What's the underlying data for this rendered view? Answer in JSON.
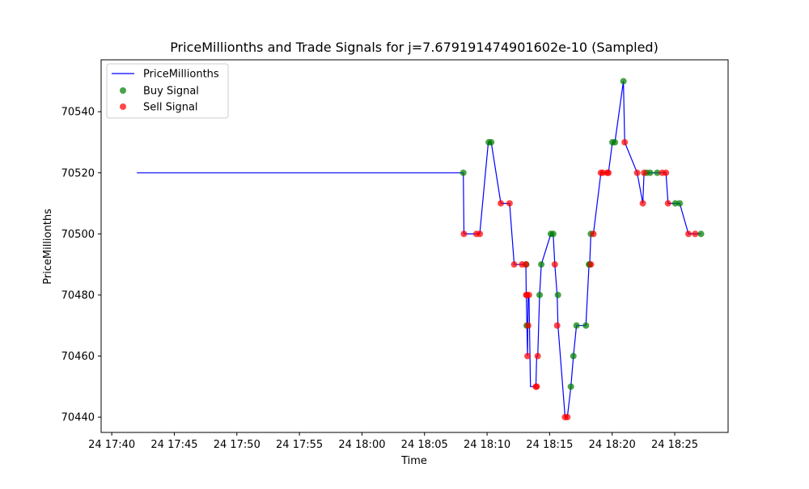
{
  "chart_data": {
    "type": "line",
    "title": "PriceMillionths and Trade Signals for j=7.679191474901602e-10 (Sampled)",
    "xlabel": "Time",
    "ylabel": "PriceMillionths",
    "xlim": [
      "24 17:39:09",
      "24 18:29:16"
    ],
    "ylim": [
      70435,
      70557
    ],
    "legend_position": "upper-left",
    "grid": false,
    "colors": {
      "price_line": "#0000ff",
      "buy": "#008000",
      "sell": "#ff0000"
    },
    "x_ticks": [
      "24 17:40",
      "24 17:45",
      "24 17:50",
      "24 17:55",
      "24 18:00",
      "24 18:05",
      "24 18:10",
      "24 18:15",
      "24 18:20",
      "24 18:25"
    ],
    "y_ticks": [
      70440,
      70460,
      70480,
      70500,
      70520,
      70540
    ],
    "series": [
      {
        "name": "PriceMillionths",
        "kind": "line",
        "x": [
          "24 17:42:00",
          "24 18:08:06",
          "24 18:08:09",
          "24 18:09:09",
          "24 18:09:25",
          "24 18:10:06",
          "24 18:10:20",
          "24 18:11:06",
          "24 18:11:48",
          "24 18:12:10",
          "24 18:12:48",
          "24 18:13:06",
          "24 18:13:08",
          "24 18:13:11",
          "24 18:13:14",
          "24 18:13:17",
          "24 18:13:21",
          "24 18:13:28",
          "24 18:13:54",
          "24 18:13:58",
          "24 18:14:03",
          "24 18:14:12",
          "24 18:14:20",
          "24 18:15:06",
          "24 18:15:17",
          "24 18:15:25",
          "24 18:15:36",
          "24 18:15:40",
          "24 18:16:14",
          "24 18:16:25",
          "24 18:16:42",
          "24 18:16:54",
          "24 18:17:09",
          "24 18:17:54",
          "24 18:18:09",
          "24 18:18:12",
          "24 18:18:18",
          "24 18:18:30",
          "24 18:19:06",
          "24 18:19:15",
          "24 18:19:36",
          "24 18:19:42",
          "24 18:20:01",
          "24 18:20:13",
          "24 18:20:54",
          "24 18:21:00",
          "24 18:22:00",
          "24 18:22:27",
          "24 18:22:33",
          "24 18:22:45",
          "24 18:23:02",
          "24 18:23:36",
          "24 18:24:00",
          "24 18:24:18",
          "24 18:24:28",
          "24 18:25:03",
          "24 18:25:24",
          "24 18:26:06",
          "24 18:26:38",
          "24 18:27:06"
        ],
        "values": [
          70520,
          70520,
          70500,
          70500,
          70500,
          70530,
          70530,
          70510,
          70510,
          70490,
          70490,
          70490,
          70480,
          70470,
          70460,
          70480,
          70480,
          70450,
          70450,
          70460,
          70460,
          70480,
          70490,
          70500,
          70500,
          70490,
          70480,
          70470,
          70440,
          70440,
          70450,
          70460,
          70470,
          70470,
          70490,
          70490,
          70500,
          70500,
          70520,
          70520,
          70520,
          70520,
          70530,
          70530,
          70550,
          70530,
          70520,
          70510,
          70520,
          70520,
          70520,
          70520,
          70520,
          70520,
          70510,
          70510,
          70510,
          70500,
          70500,
          70500
        ]
      },
      {
        "name": "Buy Signal",
        "kind": "scatter",
        "x": [
          "24 18:08:06",
          "24 18:10:08",
          "24 18:10:20",
          "24 18:13:08",
          "24 18:13:10",
          "24 18:14:12",
          "24 18:14:20",
          "24 18:15:06",
          "24 18:15:17",
          "24 18:15:40",
          "24 18:16:42",
          "24 18:16:54",
          "24 18:17:09",
          "24 18:17:54",
          "24 18:18:09",
          "24 18:18:12",
          "24 18:18:18",
          "24 18:20:01",
          "24 18:20:13",
          "24 18:20:54",
          "24 18:22:45",
          "24 18:23:02",
          "24 18:23:36",
          "24 18:25:03",
          "24 18:25:24",
          "24 18:27:06"
        ],
        "values": [
          70520,
          70530,
          70530,
          70490,
          70470,
          70480,
          70490,
          70500,
          70500,
          70480,
          70450,
          70460,
          70470,
          70470,
          70490,
          70490,
          70500,
          70530,
          70530,
          70550,
          70520,
          70520,
          70520,
          70510,
          70510,
          70500
        ]
      },
      {
        "name": "Sell Signal",
        "kind": "scatter",
        "x": [
          "24 18:08:09",
          "24 18:09:09",
          "24 18:09:25",
          "24 18:11:06",
          "24 18:11:48",
          "24 18:12:10",
          "24 18:12:48",
          "24 18:13:06",
          "24 18:13:08",
          "24 18:13:11",
          "24 18:13:14",
          "24 18:13:17",
          "24 18:13:21",
          "24 18:13:54",
          "24 18:13:58",
          "24 18:14:03",
          "24 18:15:25",
          "24 18:15:36",
          "24 18:16:14",
          "24 18:16:25",
          "24 18:18:18",
          "24 18:18:30",
          "24 18:19:06",
          "24 18:19:15",
          "24 18:19:36",
          "24 18:19:42",
          "24 18:21:00",
          "24 18:22:00",
          "24 18:22:27",
          "24 18:22:33",
          "24 18:24:00",
          "24 18:24:18",
          "24 18:24:28",
          "24 18:26:06",
          "24 18:26:38"
        ],
        "values": [
          70500,
          70500,
          70500,
          70510,
          70510,
          70490,
          70490,
          70490,
          70480,
          70480,
          70460,
          70470,
          70480,
          70450,
          70450,
          70460,
          70490,
          70470,
          70440,
          70440,
          70490,
          70500,
          70520,
          70520,
          70520,
          70520,
          70530,
          70520,
          70510,
          70520,
          70520,
          70520,
          70510,
          70500,
          70500
        ]
      }
    ]
  }
}
